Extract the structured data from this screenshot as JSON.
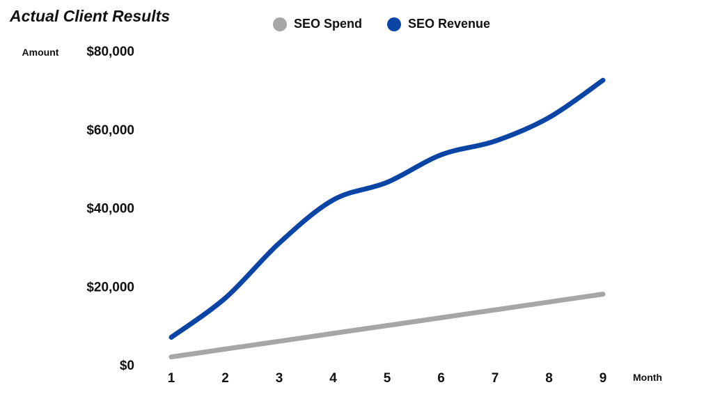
{
  "title": "Actual Client Results",
  "legend": [
    {
      "label": "SEO Spend",
      "color": "#a6a6a6"
    },
    {
      "label": "SEO Revenue",
      "color": "#0a45a6"
    }
  ],
  "chart_data": {
    "type": "line",
    "title": "Actual Client Results",
    "xlabel": "Month",
    "ylabel": "Amount",
    "x": [
      1,
      2,
      3,
      4,
      5,
      6,
      7,
      8,
      9
    ],
    "x_tick_labels": [
      "1",
      "2",
      "3",
      "4",
      "5",
      "6",
      "7",
      "8",
      "9"
    ],
    "y_tick_labels": [
      "$0",
      "$20,000",
      "$40,000",
      "$60,000",
      "$80,000"
    ],
    "y_ticks": [
      0,
      20000,
      40000,
      60000,
      80000
    ],
    "ylim": [
      0,
      80000
    ],
    "grid": false,
    "legend_position": "top",
    "series": [
      {
        "name": "SEO Spend",
        "color": "#a6a6a6",
        "values": [
          2000,
          4000,
          6000,
          8000,
          10000,
          12000,
          14000,
          16000,
          18000
        ]
      },
      {
        "name": "SEO Revenue",
        "color": "#0a45a6",
        "values": [
          7000,
          17000,
          31000,
          42000,
          46500,
          53500,
          57000,
          63000,
          72500
        ]
      }
    ]
  }
}
